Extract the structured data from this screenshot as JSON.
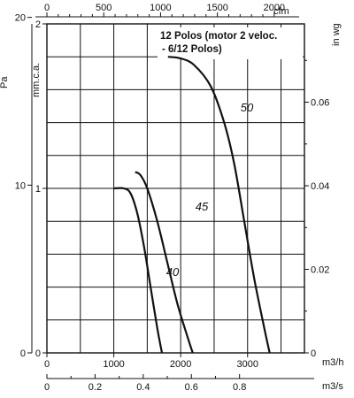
{
  "chart_data": {
    "type": "line",
    "title_line1": "12 Polos (motor 2 veloc.",
    "title_line2": "- 6/12 Polos)",
    "axes": {
      "top_cfm": {
        "unit": "cfm",
        "ticks": [
          "0",
          "500",
          "1000",
          "1500",
          "2000"
        ]
      },
      "left_pa": {
        "unit": "Pa",
        "ticks": [
          "0",
          "10",
          "20"
        ]
      },
      "left_mmca": {
        "unit": "mm.c.a.",
        "ticks": [
          "0",
          "1",
          "2"
        ]
      },
      "right_inwg": {
        "unit": "in wg",
        "ticks": [
          "0",
          "0.02",
          "0.04",
          "0.06"
        ]
      },
      "bottom_m3h": {
        "unit": "m3/h",
        "ticks": [
          "0",
          "1000",
          "2000",
          "3000"
        ]
      },
      "bottom_m3s": {
        "unit": "m3/s",
        "ticks": [
          "0",
          "0.2",
          "0.4",
          "0.6",
          "0.8"
        ]
      }
    },
    "xlim_m3h": [
      0,
      3850
    ],
    "ylim_mmca": [
      0,
      2
    ],
    "series": [
      {
        "name": "40",
        "points": [
          [
            1000,
            1.0
          ],
          [
            1150,
            1.0
          ],
          [
            1250,
            0.97
          ],
          [
            1350,
            0.85
          ],
          [
            1450,
            0.65
          ],
          [
            1550,
            0.4
          ],
          [
            1650,
            0.15
          ],
          [
            1720,
            0.0
          ]
        ]
      },
      {
        "name": "45",
        "points": [
          [
            1320,
            1.1
          ],
          [
            1400,
            1.08
          ],
          [
            1500,
            1.0
          ],
          [
            1650,
            0.8
          ],
          [
            1800,
            0.55
          ],
          [
            1950,
            0.3
          ],
          [
            2100,
            0.1
          ],
          [
            2180,
            0.0
          ]
        ]
      },
      {
        "name": "50",
        "points": [
          [
            1810,
            1.8
          ],
          [
            2000,
            1.79
          ],
          [
            2200,
            1.75
          ],
          [
            2450,
            1.62
          ],
          [
            2650,
            1.4
          ],
          [
            2800,
            1.15
          ],
          [
            2950,
            0.8
          ],
          [
            3100,
            0.45
          ],
          [
            3250,
            0.15
          ],
          [
            3330,
            0.0
          ]
        ]
      }
    ]
  }
}
